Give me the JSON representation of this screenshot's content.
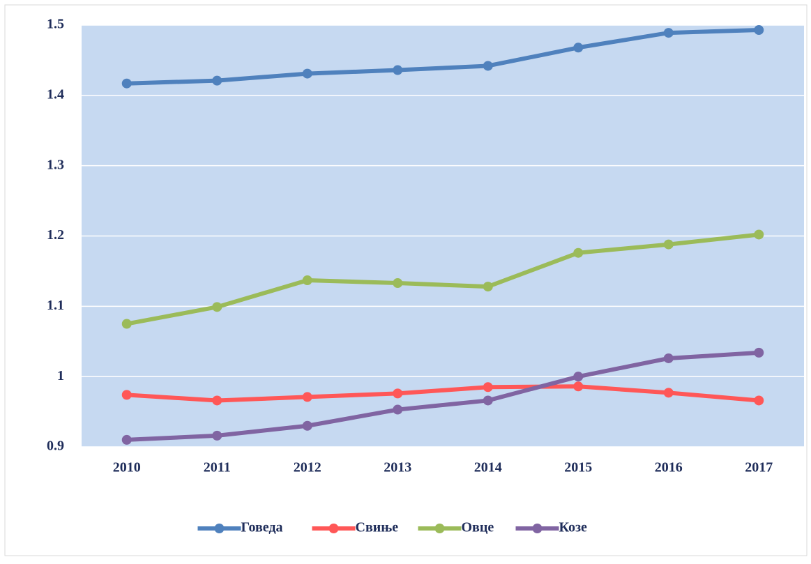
{
  "chart_data": {
    "type": "line",
    "categories": [
      "2010",
      "2011",
      "2012",
      "2013",
      "2014",
      "2015",
      "2016",
      "2017"
    ],
    "series": [
      {
        "name": "Говеда",
        "color": "#4f81bd",
        "values": [
          1.417,
          1.421,
          1.431,
          1.436,
          1.442,
          1.468,
          1.489,
          1.493
        ]
      },
      {
        "name": "Свиње",
        "color": "#ff5757",
        "values": [
          0.974,
          0.966,
          0.971,
          0.976,
          0.985,
          0.986,
          0.977,
          0.966
        ]
      },
      {
        "name": "Овце",
        "color": "#9bbb59",
        "values": [
          1.075,
          1.099,
          1.137,
          1.133,
          1.128,
          1.176,
          1.188,
          1.202
        ]
      },
      {
        "name": "Козе",
        "color": "#8064a2",
        "values": [
          0.91,
          0.916,
          0.93,
          0.953,
          0.966,
          1.0,
          1.026,
          1.034
        ]
      }
    ],
    "ylim": [
      0.9,
      1.5
    ],
    "yticks": [
      0.9,
      1,
      1.1,
      1.2,
      1.3,
      1.4,
      1.5
    ],
    "grid": true,
    "legend": "bottom"
  }
}
